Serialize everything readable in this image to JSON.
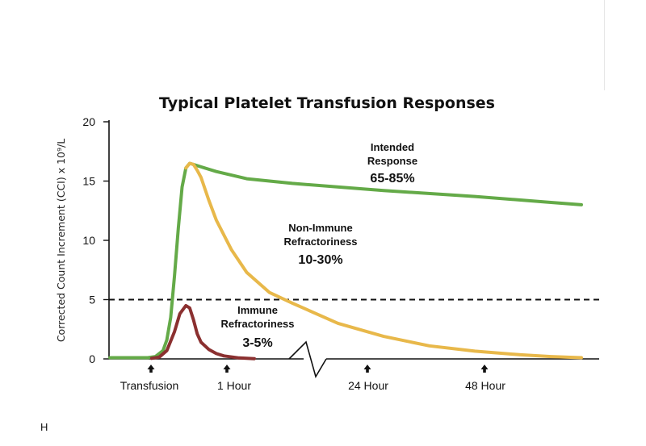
{
  "chart_data": {
    "type": "line",
    "title": "Typical Platelet Transfusion Responses",
    "ylabel": "Corrected Count Increment (CCI) x 10⁹/L",
    "xlabel": "",
    "ylim": [
      0,
      20
    ],
    "yticks": [
      "20",
      "15",
      "10",
      "5",
      "0"
    ],
    "x_markers": [
      "Transfusion",
      "1 Hour",
      "24 Hour",
      "48 Hour"
    ],
    "threshold": {
      "y": 5,
      "style": "dashed"
    },
    "axis_break": true,
    "series": [
      {
        "color": "#64aa48",
        "values": [
          [
            0,
            0.1
          ],
          [
            5,
            0.1
          ],
          [
            6,
            0.2
          ],
          [
            7,
            0.7
          ],
          [
            7.5,
            1.6
          ],
          [
            8,
            3.5
          ],
          [
            8.5,
            7
          ],
          [
            9,
            11
          ],
          [
            9.5,
            14.5
          ],
          [
            10,
            16.1
          ],
          [
            10.5,
            16.5
          ],
          [
            11,
            16.4
          ],
          [
            12,
            16.2
          ],
          [
            14,
            15.8
          ],
          [
            18,
            15.2
          ],
          [
            24,
            14.8
          ],
          [
            36,
            14.2
          ],
          [
            48,
            13.7
          ],
          [
            58,
            13.2
          ],
          [
            62,
            13
          ]
        ]
      },
      {
        "color": "#e8b84a",
        "values": [
          [
            10,
            16.1
          ],
          [
            10.5,
            16.5
          ],
          [
            11,
            16.4
          ],
          [
            11.5,
            15.9
          ],
          [
            12,
            15.3
          ],
          [
            13,
            13.4
          ],
          [
            14,
            11.7
          ],
          [
            16,
            9.2
          ],
          [
            18,
            7.3
          ],
          [
            21,
            5.6
          ],
          [
            24,
            4.7
          ],
          [
            30,
            3.0
          ],
          [
            36,
            1.9
          ],
          [
            42,
            1.1
          ],
          [
            48,
            0.65
          ],
          [
            54,
            0.35
          ],
          [
            58,
            0.2
          ],
          [
            62,
            0.1
          ]
        ]
      },
      {
        "color": "#8b3030",
        "values": [
          [
            5.5,
            0.05
          ],
          [
            6.5,
            0.15
          ],
          [
            7.5,
            0.7
          ],
          [
            8.5,
            2.3
          ],
          [
            9.2,
            3.8
          ],
          [
            10,
            4.5
          ],
          [
            10.5,
            4.3
          ],
          [
            11,
            3.3
          ],
          [
            11.5,
            2.1
          ],
          [
            12,
            1.4
          ],
          [
            13,
            0.8
          ],
          [
            14,
            0.45
          ],
          [
            15,
            0.25
          ],
          [
            17,
            0.08
          ],
          [
            19,
            0.02
          ]
        ]
      }
    ],
    "annotations": [
      {
        "lines": [
          "Intended",
          "Response"
        ],
        "value": "65-85%"
      },
      {
        "lines": [
          "Non-Immune",
          "Refractoriness"
        ],
        "value": "10-30%"
      },
      {
        "lines": [
          "Immune",
          "Refractoriness"
        ],
        "value": "3-5%"
      }
    ]
  },
  "footer_letter": "H"
}
